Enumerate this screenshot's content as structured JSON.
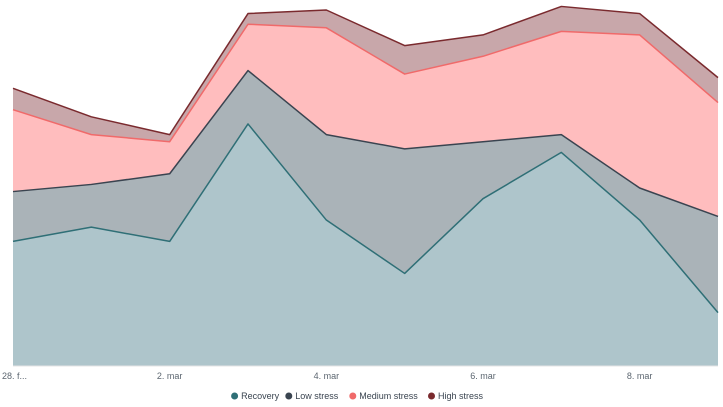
{
  "chart_data": {
    "type": "area",
    "stacked": true,
    "x_tick_labels": [
      "28. f...",
      "2. mar",
      "4. mar",
      "6. mar",
      "8. mar"
    ],
    "x_tick_positions": [
      0,
      2,
      4,
      6,
      8
    ],
    "x_range": [
      0,
      9
    ],
    "y_range": [
      0,
      100
    ],
    "grid": false,
    "legend_position": "bottom",
    "series": [
      {
        "name": "Recovery",
        "line_color": "#2f6f76",
        "fill_color": "#aec5cb",
        "values": [
          35,
          39,
          35,
          68,
          41,
          26,
          47,
          60,
          41,
          15
        ]
      },
      {
        "name": "Low stress",
        "line_color": "#3a4450",
        "fill_color": "#aab3b8",
        "values": [
          14,
          12,
          19,
          15,
          24,
          35,
          16,
          5,
          9,
          27
        ]
      },
      {
        "name": "Medium stress",
        "line_color": "#f06a6a",
        "fill_color": "#ffbdbe",
        "values": [
          23,
          14,
          9,
          13,
          30,
          21,
          24,
          29,
          43,
          32
        ]
      },
      {
        "name": "High stress",
        "line_color": "#7a2a2e",
        "fill_color": "#c8a7aa",
        "values": [
          6,
          5,
          2,
          3,
          5,
          8,
          6,
          7,
          6,
          7
        ]
      }
    ]
  }
}
